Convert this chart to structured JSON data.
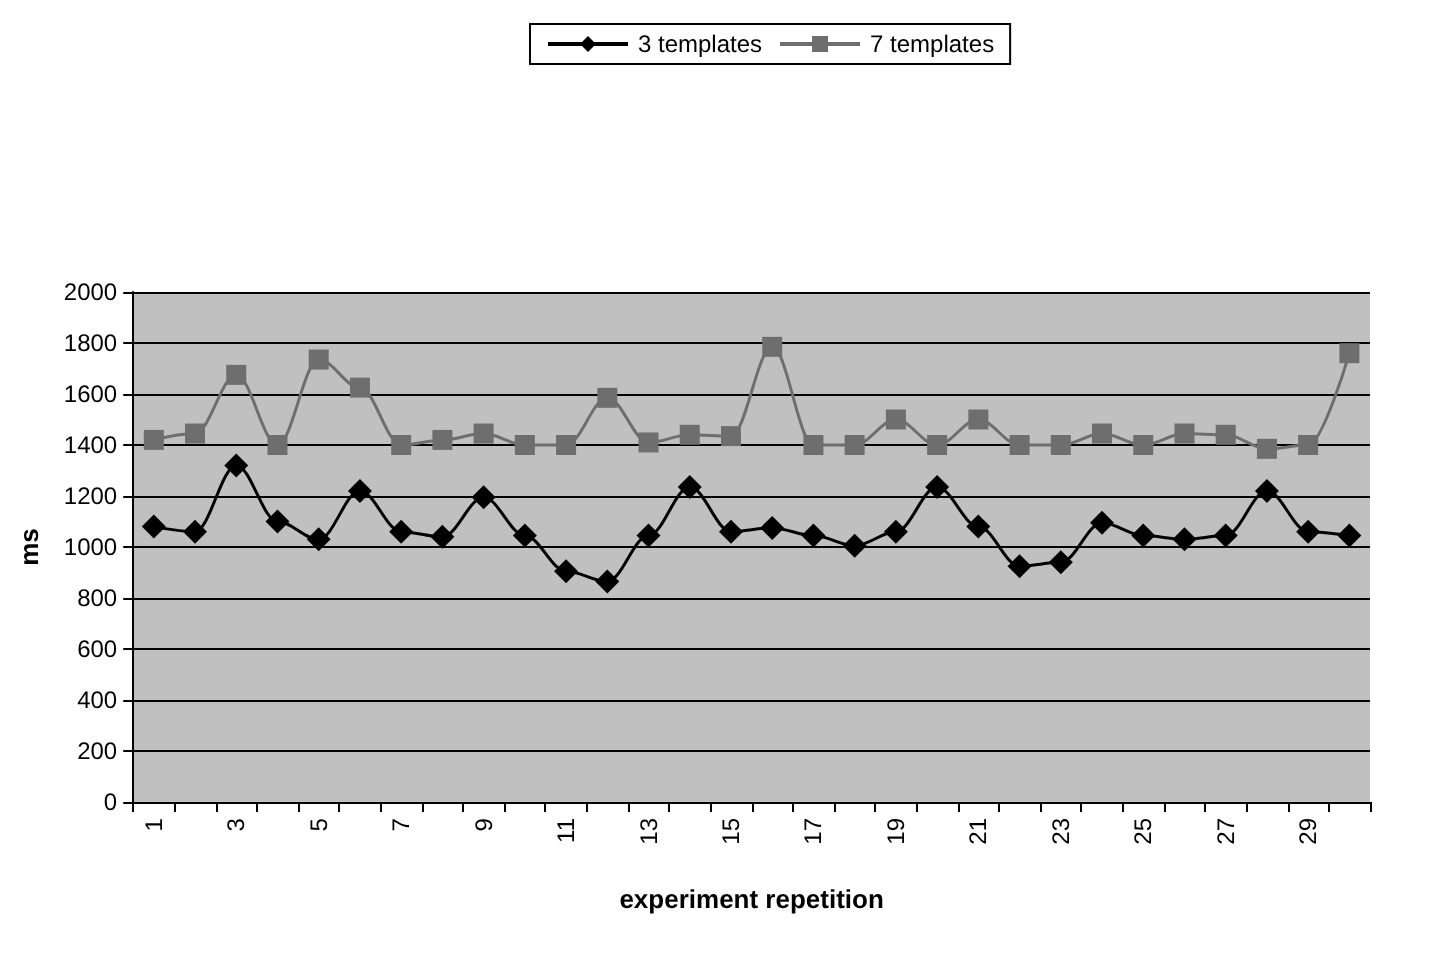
{
  "chart_data": {
    "type": "line",
    "xlabel": "experiment repetition",
    "ylabel": "ms",
    "categories": [
      "1",
      null,
      "3",
      null,
      "5",
      null,
      "7",
      null,
      "9",
      null,
      "11",
      null,
      "13",
      null,
      "15",
      null,
      "17",
      null,
      "19",
      null,
      "21",
      null,
      "23",
      null,
      "25",
      null,
      "27",
      null,
      "29",
      null
    ],
    "series": [
      {
        "name": "3 templates",
        "color": "#000000",
        "marker": "diamond",
        "values": [
          1080,
          1060,
          1320,
          1100,
          1030,
          1220,
          1060,
          1040,
          1195,
          1045,
          905,
          865,
          1045,
          1235,
          1060,
          1075,
          1045,
          1005,
          1060,
          1235,
          1080,
          925,
          940,
          1095,
          1045,
          1030,
          1045,
          1220,
          1060,
          1045
        ]
      },
      {
        "name": "7 templates",
        "color": "#6e6e6e",
        "marker": "square",
        "values": [
          1420,
          1445,
          1675,
          1400,
          1735,
          1625,
          1400,
          1420,
          1445,
          1400,
          1400,
          1585,
          1410,
          1440,
          1435,
          1785,
          1400,
          1400,
          1500,
          1400,
          1500,
          1400,
          1400,
          1445,
          1400,
          1445,
          1440,
          1385,
          1400,
          1760
        ]
      }
    ],
    "ylim": [
      0,
      2000
    ],
    "yticks": [
      0,
      200,
      400,
      600,
      800,
      1000,
      1200,
      1400,
      1600,
      1800,
      2000
    ],
    "grid": "y",
    "legend": "top",
    "line_style": "solid"
  }
}
